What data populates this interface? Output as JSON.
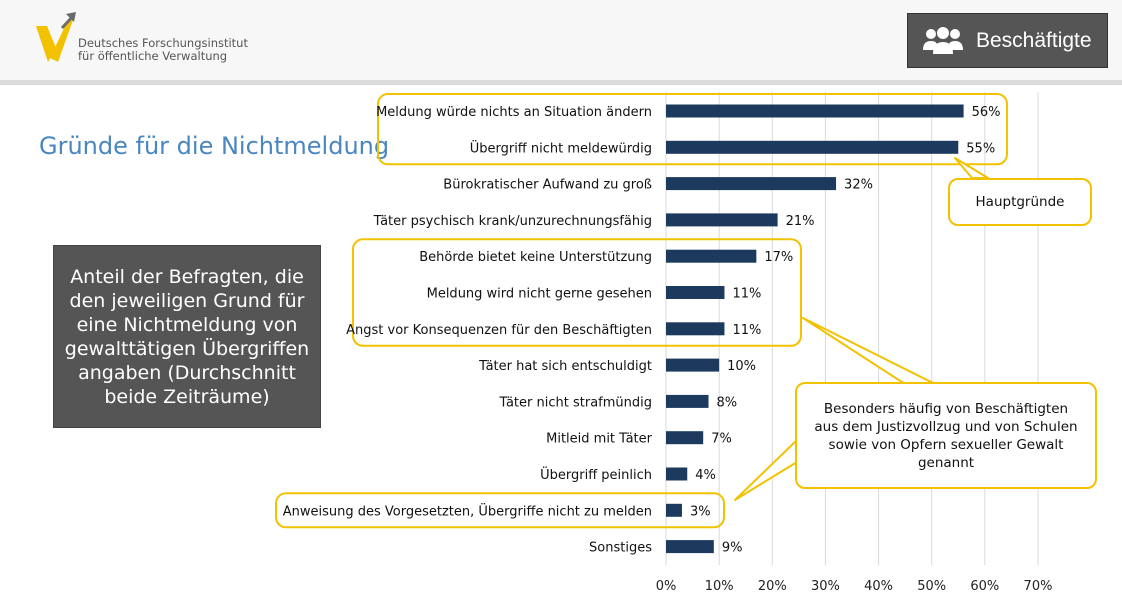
{
  "header": {
    "org_line1": "Deutsches Forschungsinstitut",
    "org_line2": "für öffentliche Verwaltung",
    "badge_label": "Beschäftigte",
    "badge_icon": "users-icon",
    "accent_color": "#f2c200"
  },
  "page_title": "Gründe für die Nichtmeldung",
  "description": "Anteil der Befragten, die den jeweiligen Grund für eine Nichtmeldung von gewalttätigen Übergriffen angaben (Durchschnitt beide Zeiträume)",
  "callouts": {
    "main_reasons": "Hauptgründe",
    "frequent_note": "Besonders häufig von Beschäftigten aus dem Justizvollzug und von Schulen sowie von Opfern sexueller Gewalt genannt"
  },
  "chart_data": {
    "type": "bar",
    "orientation": "horizontal",
    "categories": [
      "Meldung würde nichts an Situation ändern",
      "Übergriff nicht meldewürdig",
      "Bürokratischer Aufwand zu groß",
      "Täter psychisch krank/unzurechnungsfähig",
      "Behörde bietet keine Unterstützung",
      "Meldung wird nicht gerne gesehen",
      "Angst vor Konsequenzen für den Beschäftigten",
      "Täter hat sich entschuldigt",
      "Täter nicht strafmündig",
      "Mitleid mit Täter",
      "Übergriff peinlich",
      "Anweisung des Vorgesetzten, Übergriffe nicht zu melden",
      "Sonstiges"
    ],
    "values": [
      56,
      55,
      32,
      21,
      17,
      11,
      11,
      10,
      8,
      7,
      4,
      3,
      9
    ],
    "value_labels": [
      "56%",
      "55%",
      "32%",
      "21%",
      "17%",
      "11%",
      "11%",
      "10%",
      "8%",
      "7%",
      "4%",
      "3%",
      "9%"
    ],
    "xlim": [
      0,
      70
    ],
    "xticks": [
      "0%",
      "10%",
      "20%",
      "30%",
      "40%",
      "50%",
      "60%",
      "70%"
    ],
    "grid": true,
    "bar_color": "#1c3a5e",
    "highlight_groups": [
      [
        0,
        1
      ],
      [
        4,
        5,
        6
      ],
      [
        11
      ]
    ]
  }
}
